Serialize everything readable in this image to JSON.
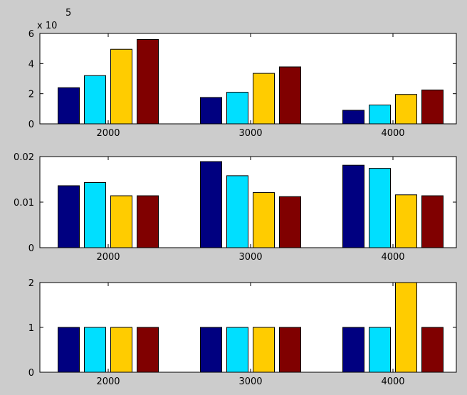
{
  "chart_data": [
    {
      "type": "bar",
      "categories": [
        "2000",
        "3000",
        "4000"
      ],
      "series": [
        {
          "values": [
            240000,
            175000,
            90000
          ],
          "color": "#000080"
        },
        {
          "values": [
            320000,
            210000,
            125000
          ],
          "color": "#00dfff"
        },
        {
          "values": [
            495000,
            335000,
            195000
          ],
          "color": "#ffcc00"
        },
        {
          "values": [
            560000,
            378000,
            225000
          ],
          "color": "#800000"
        }
      ],
      "ylim": [
        0,
        600000
      ],
      "yticks": [
        0,
        200000,
        400000,
        600000
      ],
      "ytick_labels": [
        "0",
        "2",
        "4",
        "6"
      ],
      "exponent_label": {
        "base": "x 10",
        "power": "5"
      },
      "grid": false
    },
    {
      "type": "bar",
      "categories": [
        "2000",
        "3000",
        "4000"
      ],
      "series": [
        {
          "values": [
            0.0136,
            0.0189,
            0.0181
          ],
          "color": "#000080"
        },
        {
          "values": [
            0.0143,
            0.0158,
            0.0174
          ],
          "color": "#00dfff"
        },
        {
          "values": [
            0.0114,
            0.0121,
            0.0116
          ],
          "color": "#ffcc00"
        },
        {
          "values": [
            0.0114,
            0.0112,
            0.0114
          ],
          "color": "#800000"
        }
      ],
      "ylim": [
        0,
        0.02
      ],
      "yticks": [
        0,
        0.01,
        0.02
      ],
      "ytick_labels": [
        "0",
        "0.01",
        "0.02"
      ],
      "grid": false
    },
    {
      "type": "bar",
      "categories": [
        "2000",
        "3000",
        "4000"
      ],
      "series": [
        {
          "values": [
            1,
            1,
            1
          ],
          "color": "#000080"
        },
        {
          "values": [
            1,
            1,
            1
          ],
          "color": "#00dfff"
        },
        {
          "values": [
            1,
            1,
            2
          ],
          "color": "#ffcc00"
        },
        {
          "values": [
            1,
            1,
            1
          ],
          "color": "#800000"
        }
      ],
      "ylim": [
        0,
        2
      ],
      "yticks": [
        0,
        1,
        2
      ],
      "ytick_labels": [
        "0",
        "1",
        "2"
      ],
      "grid": false
    }
  ]
}
